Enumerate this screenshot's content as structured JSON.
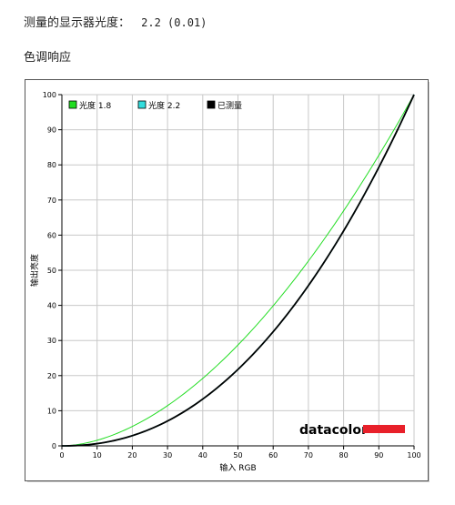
{
  "header": {
    "measured_label": "测量的显示器光度：",
    "measured_value": "2.2 (0.01)",
    "section_title": "色调响应"
  },
  "chart_data": {
    "type": "line",
    "xlabel": "输入 RGB",
    "ylabel": "输出亮度",
    "xlim": [
      0,
      100
    ],
    "ylim": [
      0,
      100
    ],
    "xticks": [
      0,
      10,
      20,
      30,
      40,
      50,
      60,
      70,
      80,
      90,
      100
    ],
    "yticks": [
      0,
      10,
      20,
      30,
      40,
      50,
      60,
      70,
      80,
      90,
      100
    ],
    "grid": true,
    "legend_position": "top-left",
    "series": [
      {
        "name": "光度 1.8",
        "color": "#22dd22",
        "gamma": 1.8,
        "x": [
          0,
          10,
          20,
          30,
          40,
          50,
          60,
          70,
          80,
          90,
          100
        ],
        "y": [
          0,
          1.6,
          5.5,
          11.5,
          19.2,
          28.7,
          39.9,
          52.6,
          66.9,
          82.7,
          100
        ]
      },
      {
        "name": "光度 2.2",
        "color": "#33dddd",
        "gamma": 2.2,
        "x": [
          0,
          10,
          20,
          30,
          40,
          50,
          60,
          70,
          80,
          90,
          100
        ],
        "y": [
          0,
          0.6,
          2.9,
          7.1,
          13.3,
          21.8,
          32.5,
          45.6,
          61.2,
          79.3,
          100
        ]
      },
      {
        "name": "已测量",
        "color": "#000000",
        "gamma": 2.2,
        "x": [
          0,
          10,
          20,
          30,
          40,
          50,
          60,
          70,
          80,
          90,
          100
        ],
        "y": [
          0,
          0.7,
          3.0,
          7.4,
          13.6,
          21.9,
          32.4,
          45.2,
          60.6,
          78.8,
          100
        ]
      }
    ]
  },
  "logo": {
    "text": "datacolor",
    "bar_color": "#e8202a"
  }
}
